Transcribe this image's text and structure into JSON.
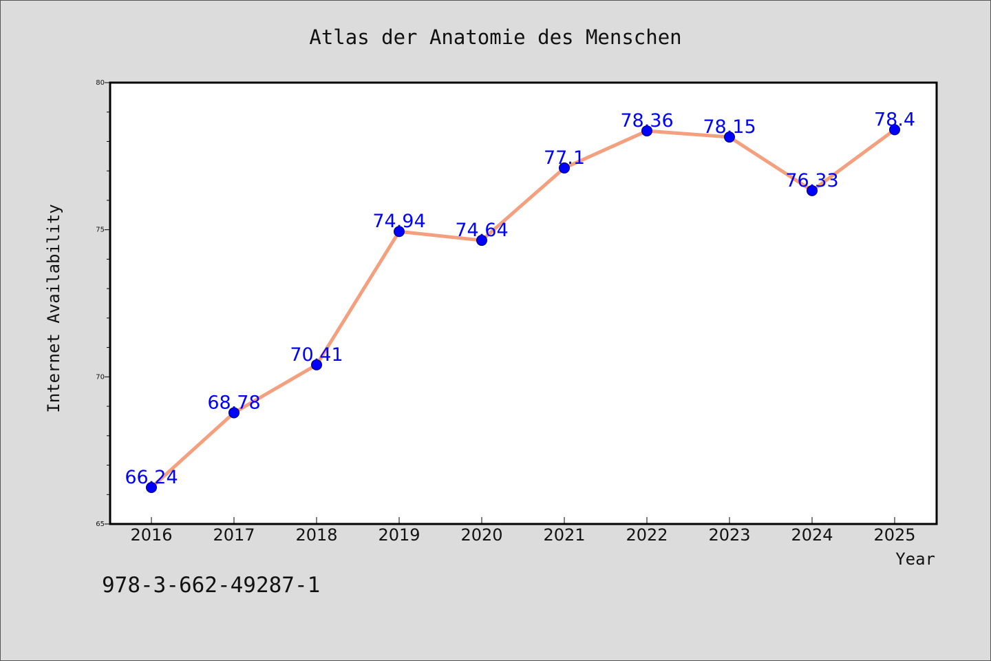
{
  "chart_data": {
    "type": "line",
    "title": "Atlas der Anatomie des Menschen",
    "xlabel": "Year",
    "ylabel": "Internet Availability",
    "categories": [
      "2016",
      "2017",
      "2018",
      "2019",
      "2020",
      "2021",
      "2022",
      "2023",
      "2024",
      "2025"
    ],
    "series": [
      {
        "values": [
          66.24,
          68.78,
          70.41,
          74.94,
          74.64,
          77.1,
          78.36,
          78.15,
          76.33,
          78.4
        ],
        "labels": [
          "66.24",
          "68.78",
          "70.41",
          "74.94",
          "74.64",
          "77.1",
          "78.36",
          "78.15",
          "76.33",
          "78.4"
        ]
      }
    ],
    "ylim": [
      65,
      80
    ],
    "yticks": [
      "65",
      "70",
      "75",
      "80"
    ],
    "grid": false,
    "legend": "none",
    "colors": {
      "line": "#f4a07e",
      "marker": "#0000ff",
      "label": "#0000ff",
      "background": "#dcdcdc",
      "plot_background": "#ffffff"
    }
  },
  "footer": {
    "code": "978-3-662-49287-1"
  }
}
